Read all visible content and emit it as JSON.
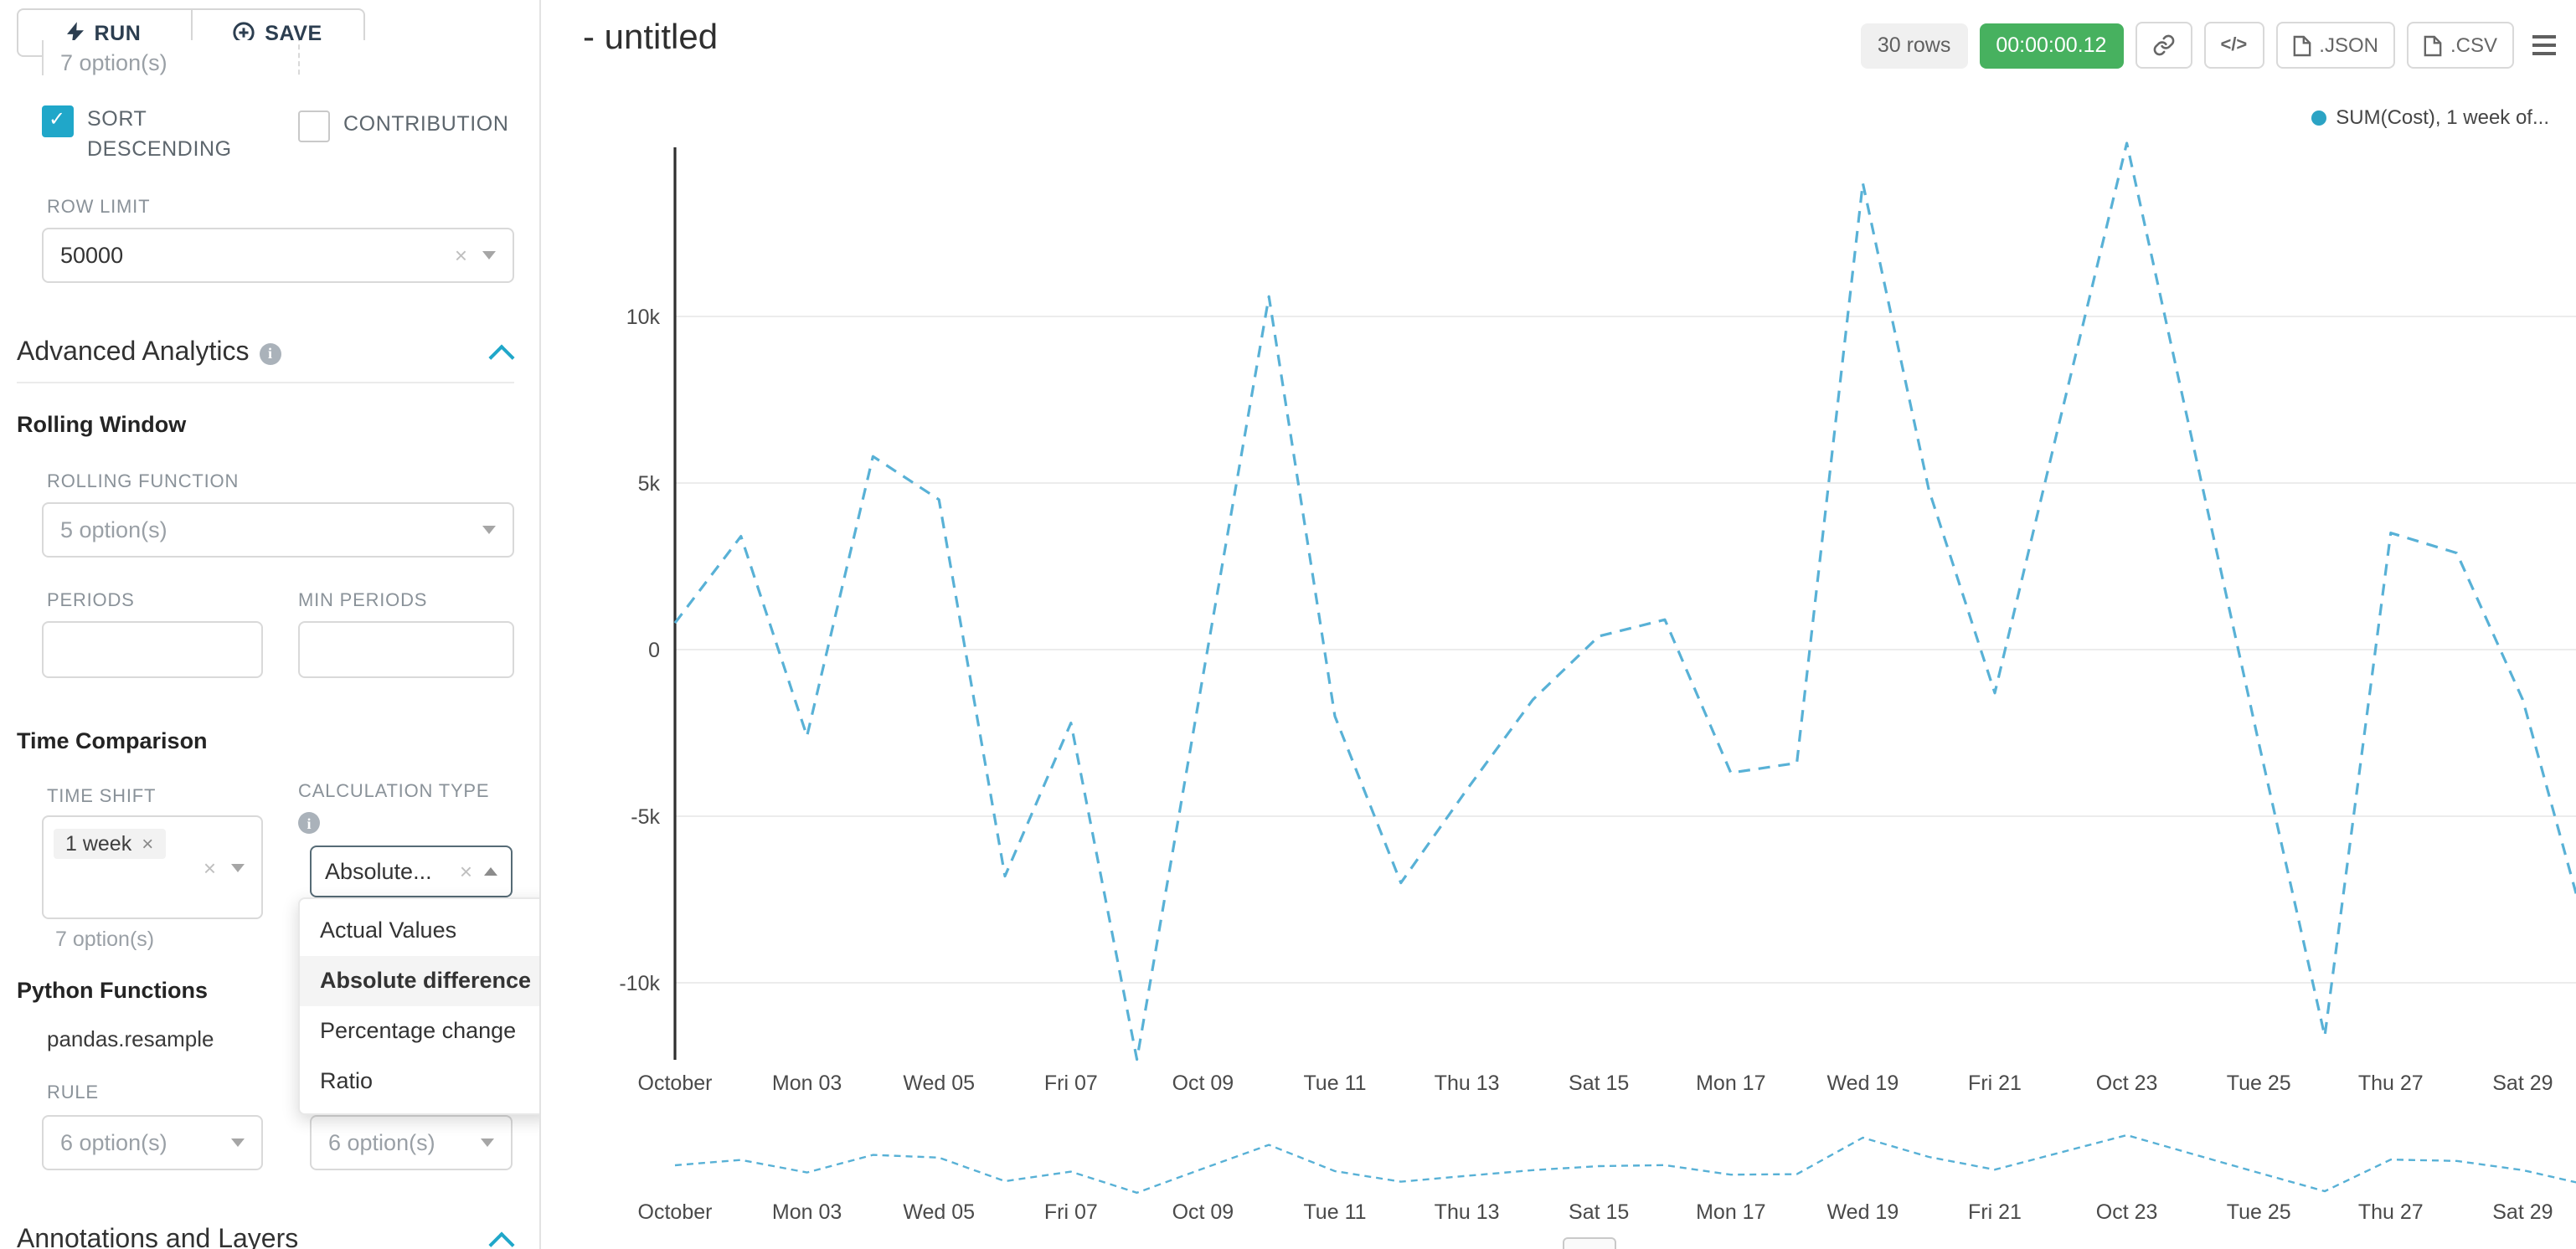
{
  "colors": {
    "accent": "#20a7c9",
    "timer_green": "#47b15f",
    "series_line": "#58b1d6",
    "legend_dot": "#2ba3c4"
  },
  "panel": {
    "run_save": {
      "run": "RUN",
      "save": "SAVE"
    },
    "cropped_controls": {
      "left_value": "7 option(s)"
    },
    "sort_descending": {
      "label": "SORT DESCENDING",
      "checked": true
    },
    "contribution": {
      "label": "CONTRIBUTION",
      "checked": false
    },
    "row_limit": {
      "label": "ROW LIMIT",
      "value": "50000"
    },
    "sections": {
      "advanced_analytics": "Advanced Analytics",
      "rolling_window": "Rolling Window",
      "time_comparison": "Time Comparison",
      "python_functions": "Python Functions",
      "annotations": "Annotations and Layers"
    },
    "rolling_function": {
      "label": "ROLLING FUNCTION",
      "placeholder": "5 option(s)"
    },
    "periods": {
      "label": "PERIODS",
      "value": ""
    },
    "min_periods": {
      "label": "MIN PERIODS",
      "value": ""
    },
    "time_shift": {
      "label": "TIME SHIFT",
      "tag": "1 week",
      "helper": "7 option(s)"
    },
    "calculation_type": {
      "label": "CALCULATION TYPE",
      "value": "Absolute...",
      "options": [
        "Actual Values",
        "Absolute difference",
        "Percentage change",
        "Ratio"
      ],
      "selected": "Absolute difference"
    },
    "pandas_resample": {
      "name": "pandas.resample",
      "rule_label": "RULE",
      "rule_placeholder": "6 option(s)",
      "method_placeholder": "6 option(s)"
    }
  },
  "header": {
    "title": "- untitled",
    "rows_badge": "30 rows",
    "timer": "00:00:00.12",
    "buttons": {
      "code": "</>",
      "json": ".JSON",
      "csv": ".CSV"
    }
  },
  "chart_data": {
    "type": "line",
    "title": "",
    "legend_position": "top-right",
    "grid": true,
    "line_style": "dashed",
    "has_mini_preview": true,
    "legend": [
      {
        "name": "SUM(Cost), 1 week of...",
        "color": "#2ba3c4"
      }
    ],
    "x_labels_visible": [
      "October",
      "Mon 03",
      "Wed 05",
      "Fri 07",
      "Oct 09",
      "Tue 11",
      "Thu 13",
      "Sat 15",
      "Mon 17",
      "Wed 19",
      "Fri 21",
      "Oct 23",
      "Tue 25",
      "Thu 27",
      "Sat 29"
    ],
    "x": [
      "Oct 01",
      "Oct 02",
      "Oct 03",
      "Oct 04",
      "Oct 05",
      "Oct 06",
      "Oct 07",
      "Oct 08",
      "Oct 09",
      "Oct 10",
      "Oct 11",
      "Oct 12",
      "Oct 13",
      "Oct 14",
      "Oct 15",
      "Oct 16",
      "Oct 17",
      "Oct 18",
      "Oct 19",
      "Oct 20",
      "Oct 21",
      "Oct 22",
      "Oct 23",
      "Oct 24",
      "Oct 25",
      "Oct 26",
      "Oct 27",
      "Oct 28",
      "Oct 29",
      "Oct 30"
    ],
    "series": [
      {
        "name": "SUM(Cost), 1 week of...",
        "style": "dashed",
        "color": "#58b1d6",
        "values": [
          800,
          3400,
          -2600,
          5800,
          4500,
          -6800,
          -2200,
          -12300,
          -800,
          10600,
          -2000,
          -7000,
          -4200,
          -1500,
          400,
          900,
          -3700,
          -3400,
          14000,
          4800,
          -1300,
          7000,
          15200,
          6200,
          -2800,
          -11600,
          3500,
          2900,
          -1500,
          -8700
        ]
      }
    ],
    "y_ticks": [
      {
        "label": "10k",
        "value": 10000
      },
      {
        "label": "5k",
        "value": 5000
      },
      {
        "label": "0",
        "value": 0
      },
      {
        "label": "-5k",
        "value": -5000
      },
      {
        "label": "-10k",
        "value": -10000
      }
    ],
    "ylim": [
      -13200,
      15500
    ]
  }
}
